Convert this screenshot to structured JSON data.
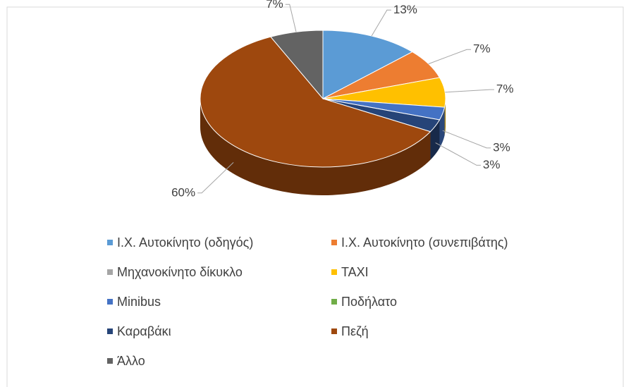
{
  "chart_data": {
    "type": "pie3d",
    "categories": [
      "Ι.Χ. Αυτοκίνητο (οδηγός)",
      "Ι.Χ. Αυτοκίνητο (συνεπιβάτης)",
      "Μηχανοκίνητο δίκυκλο",
      "TAXI",
      "Minibus",
      "Ποδήλατο",
      "Καραβάκι",
      "Πεζή",
      "Άλλο"
    ],
    "values": [
      13,
      7,
      0,
      7,
      3,
      0,
      3,
      60,
      7
    ],
    "value_labels": [
      "13%",
      "7%",
      null,
      "7%",
      "3%",
      null,
      "3%",
      "60%",
      "7%"
    ],
    "colors": [
      "#5b9bd5",
      "#ed7d31",
      "#a5a5a5",
      "#ffc000",
      "#4472c4",
      "#70ad47",
      "#264478",
      "#9e480e",
      "#636363"
    ],
    "legend": "bottom"
  }
}
